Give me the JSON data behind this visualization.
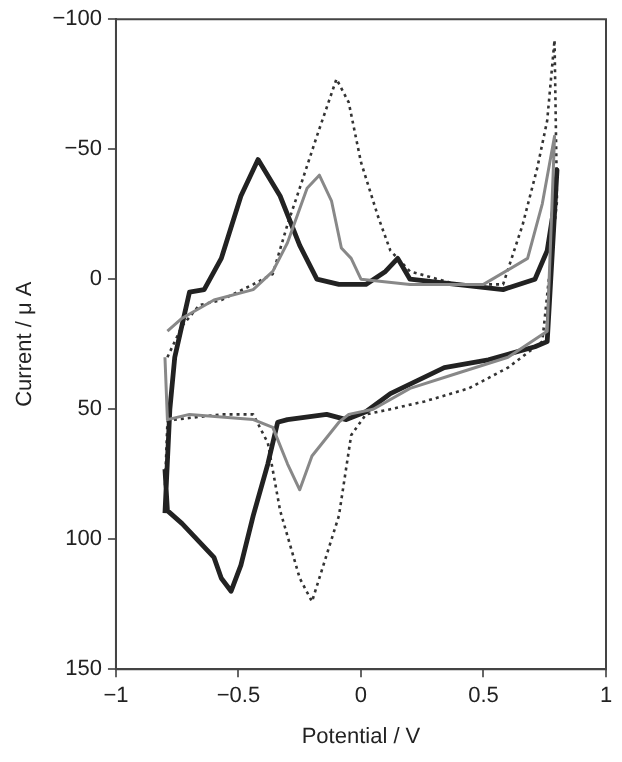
{
  "chart_data": {
    "type": "line",
    "xlabel": "Potential / V",
    "ylabel": "Current / μ A",
    "xlim": [
      -1,
      1
    ],
    "xticks": [
      -1,
      -0.5,
      0,
      0.5,
      1
    ],
    "ylim": [
      150,
      -100
    ],
    "yticks": [
      -100,
      -50,
      0,
      50,
      100,
      150
    ],
    "marker": "none",
    "series": [
      {
        "color": "#222222",
        "line_style": "solid",
        "x": [
          -0.8,
          -0.78,
          -0.76,
          -0.7,
          -0.64,
          -0.57,
          -0.49,
          -0.42,
          -0.33,
          -0.25,
          -0.18,
          -0.09,
          0.02,
          0.1,
          0.15,
          0.2,
          0.39,
          0.58,
          0.71,
          0.76,
          0.79,
          0.8,
          0.76,
          0.71,
          0.52,
          0.34,
          0.23,
          0.12,
          0.02,
          -0.06,
          -0.14,
          -0.3,
          -0.34,
          -0.38,
          -0.44,
          -0.49,
          -0.53,
          -0.57,
          -0.6,
          -0.65,
          -0.73,
          -0.79,
          -0.8
        ],
        "values": [
          90,
          50,
          30,
          5,
          4,
          -8,
          -32,
          -46,
          -32,
          -13,
          0,
          2,
          2,
          -3,
          -8,
          0,
          2,
          4,
          0,
          -11,
          -29,
          -42,
          24,
          26,
          31,
          34,
          39,
          44,
          51,
          54,
          52,
          54,
          55,
          71,
          91,
          110,
          120,
          115,
          107,
          102,
          94,
          89,
          73
        ]
      },
      {
        "color": "#888888",
        "line_style": "solid",
        "x": [
          -0.79,
          -0.73,
          -0.6,
          -0.44,
          -0.36,
          -0.3,
          -0.22,
          -0.17,
          -0.12,
          -0.08,
          -0.04,
          0,
          0.2,
          0.5,
          0.68,
          0.74,
          0.79,
          0.76,
          0.6,
          0.4,
          0.2,
          0.05,
          -0.05,
          -0.09,
          -0.2,
          -0.25,
          -0.3,
          -0.36,
          -0.44,
          -0.7,
          -0.79,
          -0.8
        ],
        "values": [
          20,
          15,
          8,
          4,
          -3,
          -14,
          -35,
          -40,
          -30,
          -12,
          -8,
          0,
          2,
          2,
          -8,
          -29,
          -55,
          20,
          30,
          36,
          42,
          50,
          52,
          55,
          68,
          81,
          71,
          57,
          54,
          52,
          54,
          30
        ]
      },
      {
        "color": "#333333",
        "line_style": "dotted",
        "x": [
          -0.79,
          -0.73,
          -0.66,
          -0.57,
          -0.44,
          -0.36,
          -0.3,
          -0.25,
          -0.18,
          -0.1,
          -0.05,
          0,
          0.07,
          0.12,
          0.2,
          0.39,
          0.58,
          0.66,
          0.72,
          0.76,
          0.79,
          0.8,
          0.74,
          0.6,
          0.44,
          0.26,
          0.12,
          0.02,
          -0.04,
          -0.09,
          -0.2,
          -0.25,
          -0.33,
          -0.38,
          -0.44,
          -0.57,
          -0.76,
          -0.79,
          -0.8
        ],
        "values": [
          30,
          18,
          10,
          8,
          2,
          -2,
          -21,
          -35,
          -55,
          -77,
          -68,
          -45,
          -24,
          -11,
          -3,
          2,
          2,
          -21,
          -43,
          -61,
          -92,
          -30,
          24,
          34,
          42,
          47,
          50,
          52,
          60,
          91,
          124,
          115,
          89,
          63,
          52,
          52,
          54,
          55,
          80
        ]
      }
    ]
  }
}
